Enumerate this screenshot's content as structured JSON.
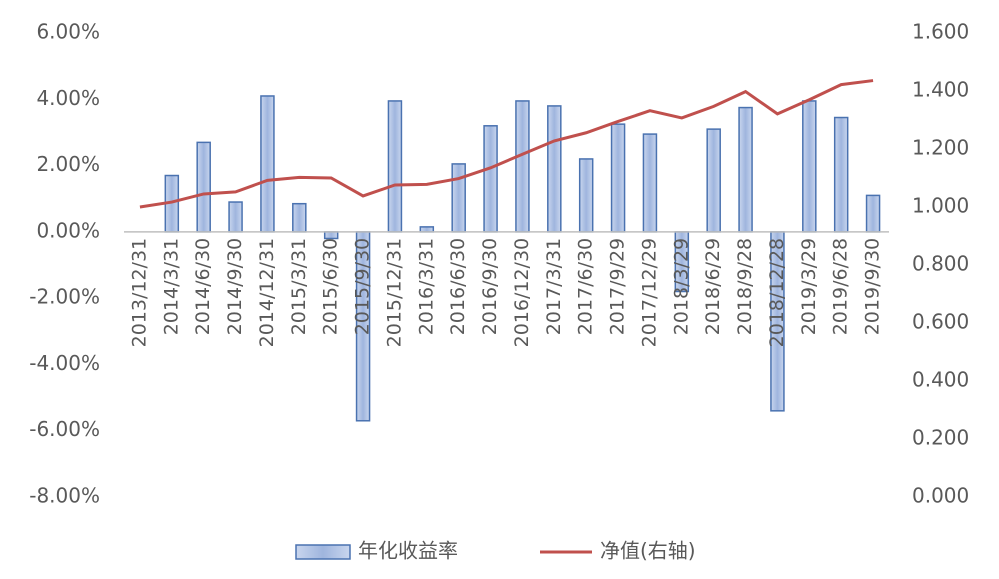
{
  "chart_data": {
    "type": "bar-line",
    "categories": [
      "2013/12/31",
      "2014/3/31",
      "2014/6/30",
      "2014/9/30",
      "2014/12/31",
      "2015/3/31",
      "2015/6/30",
      "2015/9/30",
      "2015/12/31",
      "2016/3/31",
      "2016/6/30",
      "2016/9/30",
      "2016/12/30",
      "2017/3/31",
      "2017/6/30",
      "2017/9/29",
      "2017/12/29",
      "2018/3/29",
      "2018/6/29",
      "2018/9/28",
      "2018/12/28",
      "2019/3/29",
      "2019/6/28",
      "2019/9/30"
    ],
    "series": [
      {
        "name": "年化收益率",
        "type": "bar",
        "color": "#a9bde0",
        "values": [
          null,
          1.7,
          2.7,
          0.9,
          4.1,
          0.85,
          -0.2,
          -5.7,
          3.95,
          0.15,
          2.05,
          3.2,
          3.95,
          3.8,
          2.2,
          3.25,
          2.95,
          -1.8,
          3.1,
          3.75,
          -5.4,
          3.95,
          3.45,
          1.1
        ]
      },
      {
        "name": "净值(右轴)",
        "type": "line",
        "axis": "y2",
        "color": "#c0504d",
        "values": [
          1.0,
          1.017,
          1.045,
          1.052,
          1.092,
          1.102,
          1.1,
          1.038,
          1.076,
          1.078,
          1.098,
          1.135,
          1.182,
          1.228,
          1.256,
          1.295,
          1.332,
          1.307,
          1.347,
          1.398,
          1.321,
          1.37,
          1.422,
          1.436
        ]
      }
    ],
    "ylim": [
      -8,
      6
    ],
    "yticks": [
      {
        "value": -8,
        "label": "-8.00%"
      },
      {
        "value": -6,
        "label": "-6.00%"
      },
      {
        "value": -4,
        "label": "-4.00%"
      },
      {
        "value": -2,
        "label": "-2.00%"
      },
      {
        "value": 0,
        "label": "0.00%"
      },
      {
        "value": 2,
        "label": "2.00%"
      },
      {
        "value": 4,
        "label": "4.00%"
      },
      {
        "value": 6,
        "label": "6.00%"
      }
    ],
    "y2lim": [
      0,
      1.6
    ],
    "y2ticks": [
      {
        "value": 0,
        "label": "0.000"
      },
      {
        "value": 0.2,
        "label": "0.200"
      },
      {
        "value": 0.4,
        "label": "0.400"
      },
      {
        "value": 0.6,
        "label": "0.600"
      },
      {
        "value": 0.8,
        "label": "0.800"
      },
      {
        "value": 1.0,
        "label": "1.000"
      },
      {
        "value": 1.2,
        "label": "1.200"
      },
      {
        "value": 1.4,
        "label": "1.400"
      },
      {
        "value": 1.6,
        "label": "1.600"
      }
    ],
    "legend": "bottom"
  }
}
